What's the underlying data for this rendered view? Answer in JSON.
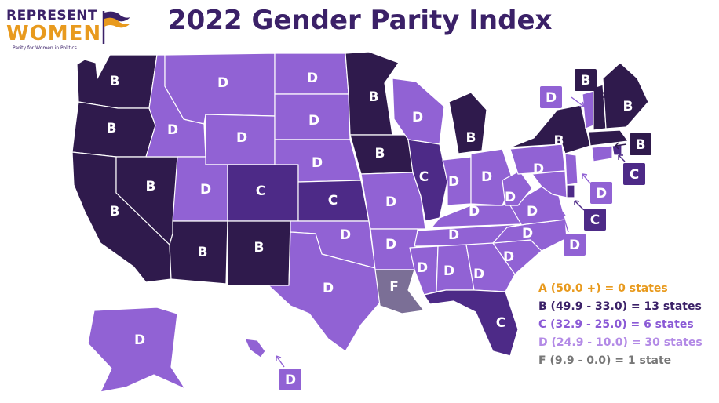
{
  "logo": {
    "line1": "REPRESENT",
    "line2": "WOMEN",
    "tagline": "Parity for Women in Politics"
  },
  "title": "2022 Gender Parity Index",
  "colors": {
    "B": "#2f1a4c",
    "C": "#4d2a87",
    "D": "#9162d4",
    "F": "#7b6f96",
    "A_text": "#e89a1e",
    "B_text": "#3b2168",
    "C_text": "#8b5ad6",
    "D_text": "#b38ae6",
    "F_text": "#777777",
    "border": "#ffffff",
    "title": "#3b2168"
  },
  "legend": [
    {
      "grade": "A",
      "text": "A (50.0 +) = 0 states"
    },
    {
      "grade": "B",
      "text": "B (49.9 - 33.0) = 13 states"
    },
    {
      "grade": "C",
      "text": "C (32.9 - 25.0) = 6 states"
    },
    {
      "grade": "D",
      "text": "D (24.9 - 10.0) = 30 states"
    },
    {
      "grade": "F",
      "text": "F (9.9 - 0.0) = 1 state"
    }
  ],
  "states": [
    {
      "name": "WA",
      "grade": "B"
    },
    {
      "name": "OR",
      "grade": "B"
    },
    {
      "name": "CA",
      "grade": "B"
    },
    {
      "name": "NV",
      "grade": "B"
    },
    {
      "name": "ID",
      "grade": "D"
    },
    {
      "name": "MT",
      "grade": "D"
    },
    {
      "name": "WY",
      "grade": "D"
    },
    {
      "name": "UT",
      "grade": "D"
    },
    {
      "name": "AZ",
      "grade": "B"
    },
    {
      "name": "CO",
      "grade": "C"
    },
    {
      "name": "NM",
      "grade": "B"
    },
    {
      "name": "ND",
      "grade": "D"
    },
    {
      "name": "SD",
      "grade": "D"
    },
    {
      "name": "NE",
      "grade": "D"
    },
    {
      "name": "KS",
      "grade": "C"
    },
    {
      "name": "OK",
      "grade": "D"
    },
    {
      "name": "TX",
      "grade": "D"
    },
    {
      "name": "MN",
      "grade": "B"
    },
    {
      "name": "IA",
      "grade": "B"
    },
    {
      "name": "MO",
      "grade": "D"
    },
    {
      "name": "AR",
      "grade": "D"
    },
    {
      "name": "LA",
      "grade": "F"
    },
    {
      "name": "WI",
      "grade": "D"
    },
    {
      "name": "IL",
      "grade": "C"
    },
    {
      "name": "MI",
      "grade": "B"
    },
    {
      "name": "IN",
      "grade": "D"
    },
    {
      "name": "OH",
      "grade": "D"
    },
    {
      "name": "KY",
      "grade": "D"
    },
    {
      "name": "TN",
      "grade": "D"
    },
    {
      "name": "MS",
      "grade": "D"
    },
    {
      "name": "AL",
      "grade": "D"
    },
    {
      "name": "GA",
      "grade": "D"
    },
    {
      "name": "FL",
      "grade": "C"
    },
    {
      "name": "SC",
      "grade": "D"
    },
    {
      "name": "NC",
      "grade": "D"
    },
    {
      "name": "VA",
      "grade": "D"
    },
    {
      "name": "WV",
      "grade": "D"
    },
    {
      "name": "PA",
      "grade": "D"
    },
    {
      "name": "NY",
      "grade": "B"
    },
    {
      "name": "VT",
      "grade": "D"
    },
    {
      "name": "NH",
      "grade": "B"
    },
    {
      "name": "ME",
      "grade": "B"
    },
    {
      "name": "MA",
      "grade": "B"
    },
    {
      "name": "RI",
      "grade": "C"
    },
    {
      "name": "CT",
      "grade": "D"
    },
    {
      "name": "NJ",
      "grade": "D"
    },
    {
      "name": "DE",
      "grade": "C"
    },
    {
      "name": "MD",
      "grade": "D"
    },
    {
      "name": "AK",
      "grade": "D"
    },
    {
      "name": "HI",
      "grade": "D"
    }
  ],
  "callouts": [
    {
      "state": "VT",
      "grade": "D"
    },
    {
      "state": "NH",
      "grade": "B"
    },
    {
      "state": "MA",
      "grade": "B"
    },
    {
      "state": "RI",
      "grade": "C"
    },
    {
      "state": "CT",
      "grade": "D"
    },
    {
      "state": "DE",
      "grade": "C"
    },
    {
      "state": "MD",
      "grade": "D"
    },
    {
      "state": "HI",
      "grade": "D"
    }
  ]
}
